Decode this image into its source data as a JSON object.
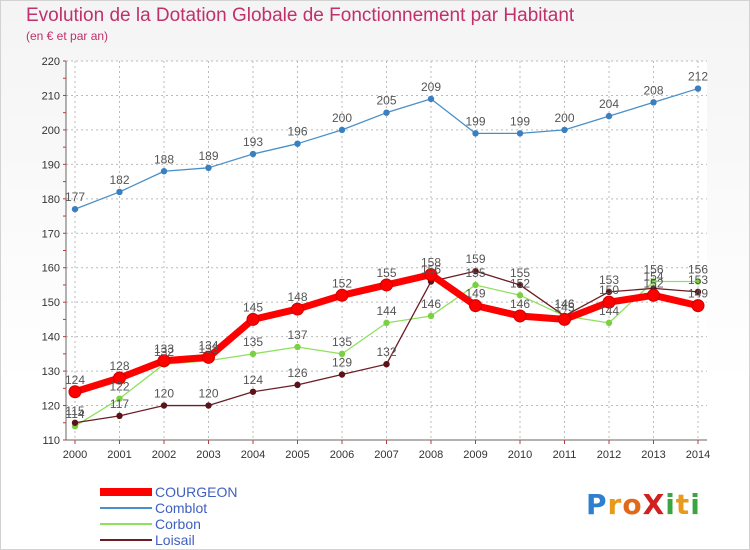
{
  "title": "Evolution de la Dotation Globale de Fonctionnement par Habitant",
  "subtitle": "(en € et par an)",
  "logo": {
    "text": "ProXiti",
    "letters": [
      "P",
      "r",
      "o",
      "X",
      "i",
      "t",
      "i"
    ],
    "colors": [
      "#2f7fd0",
      "#e89a1a",
      "#e06a1a",
      "#d02020",
      "#3aa640",
      "#e89a1a",
      "#3aa640"
    ]
  },
  "chart_data": {
    "type": "line",
    "x": [
      "2000",
      "2001",
      "2002",
      "2003",
      "2004",
      "2005",
      "2006",
      "2007",
      "2008",
      "2009",
      "2010",
      "2011",
      "2012",
      "2013",
      "2014"
    ],
    "ylim": [
      110,
      220
    ],
    "yticks": [
      "110",
      "120",
      "130",
      "140",
      "150",
      "160",
      "170",
      "180",
      "190",
      "200",
      "210",
      "220"
    ],
    "grid": true,
    "legend_position": "bottom-left",
    "series": [
      {
        "name": "COURGEON",
        "color": "#ff0000",
        "values": [
          124,
          128,
          133,
          134,
          145,
          148,
          152,
          155,
          158,
          149,
          146,
          145,
          150,
          152,
          149
        ]
      },
      {
        "name": "Comblot",
        "color": "#4a90c8",
        "values": [
          177,
          182,
          188,
          189,
          193,
          196,
          200,
          205,
          209,
          199,
          199,
          200,
          204,
          208,
          212
        ]
      },
      {
        "name": "Corbon",
        "color": "#90e060",
        "values": [
          114,
          122,
          132,
          133,
          135,
          137,
          135,
          144,
          146,
          155,
          152,
          146,
          144,
          156,
          156
        ]
      },
      {
        "name": "Loisail",
        "color": "#6b1e24",
        "values": [
          115,
          117,
          120,
          120,
          124,
          126,
          129,
          132,
          156,
          159,
          155,
          146,
          153,
          154,
          153
        ]
      }
    ]
  }
}
